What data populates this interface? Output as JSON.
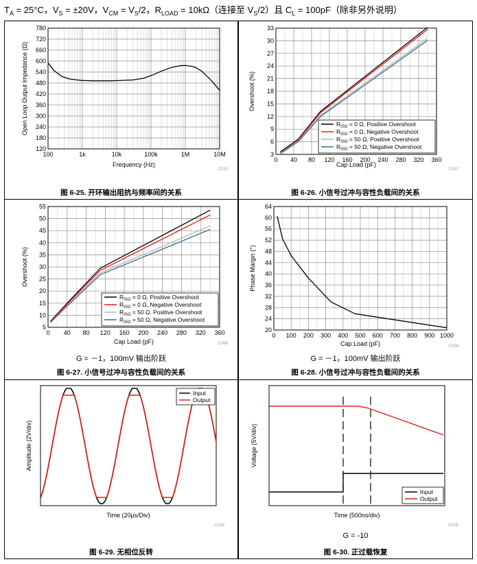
{
  "header": {
    "ta": "T",
    "ta_sub": "A",
    "ta_val": " = 25°C，V",
    "vs_sub": "S",
    "vs_val": " = ±20V，V",
    "vcm_sub": "CM",
    "vcm_val": " = V",
    "vcm_sub2": "S",
    "vcm_val2": "/2，R",
    "rload_sub": "LOAD",
    "rload_val": " = 10kΩ（连接至 V",
    "vs2_sub": "S",
    "vs2_val": "/2）且 C",
    "cl_sub": "L",
    "cl_val": " = 100pF（除非另外说明）"
  },
  "panels": [
    {
      "id": "fig-6-25",
      "caption": "图 6-25. 开环输出阻抗与频率间的关系",
      "code": "C013",
      "note": "",
      "chart_data": {
        "type": "line",
        "xscale": "log",
        "xlim": [
          100,
          10000000
        ],
        "xticks": [
          "100",
          "1k",
          "10k",
          "100k",
          "1M",
          "10M"
        ],
        "xlabel": "Frequency (Hz)",
        "ylabel": "Open Loop Output Impedance (Ω)",
        "ylim": [
          120,
          780
        ],
        "yticks": [
          "120",
          "180",
          "240",
          "300",
          "360",
          "420",
          "480",
          "540",
          "600",
          "660",
          "720",
          "780"
        ],
        "series": [
          {
            "color": "#000000",
            "x": [
              100,
              150,
              250,
              400,
              700,
              1000,
              2000,
              5000,
              10000,
              30000,
              60000,
              100000,
              200000,
              400000,
              700000,
              1000000,
              1500000,
              2000000,
              3000000,
              5000000,
              7000000,
              10000000
            ],
            "y": [
              590,
              548,
              516,
              503,
              497,
              494,
              492,
              492,
              493,
              497,
              506,
              520,
              545,
              565,
              575,
              576,
              572,
              565,
              545,
              505,
              475,
              440
            ]
          }
        ]
      }
    },
    {
      "id": "fig-6-26",
      "caption": "图 6-26. 小信号过冲与容性负载间的关系",
      "code": "C007",
      "note": "",
      "chart_data": {
        "type": "line",
        "xlim": [
          0,
          360
        ],
        "xticks": [
          "0",
          "40",
          "80",
          "120",
          "160",
          "200",
          "240",
          "280",
          "320",
          "360"
        ],
        "xlabel": "Cap Load (pF)",
        "ylabel": "Overshoot (%)",
        "ylim": [
          3,
          33
        ],
        "yticks": [
          "3",
          "6",
          "9",
          "12",
          "15",
          "18",
          "21",
          "24",
          "27",
          "30",
          "33"
        ],
        "legend_position": "bottom-right",
        "series": [
          {
            "name": "R_ISO = 0 Ω, Positive Overshoot",
            "name_main": "R",
            "name_sub": "ISO",
            "name_rest": " = 0 Ω, Positive Overshoot",
            "color": "#000000",
            "x": [
              10,
              50,
              100,
              340
            ],
            "y": [
              3.6,
              6.6,
              13.2,
              33.2
            ]
          },
          {
            "name": "R_ISO = 0 Ω, Negative Overshoot",
            "name_main": "R",
            "name_sub": "ISO",
            "name_rest": " = 0 Ω, Negative Overshoot",
            "color": "#e41b1b",
            "x": [
              10,
              50,
              100,
              340
            ],
            "y": [
              3.4,
              6.4,
              12.9,
              32.7
            ]
          },
          {
            "name": "R_ISO = 50 Ω, Positive Overshoot",
            "name_main": "R",
            "name_sub": "ISO",
            "name_rest": " = 50 Ω, Positive Overshoot",
            "color": "#b4b4b4",
            "x": [
              10,
              50,
              100,
              340
            ],
            "y": [
              3.3,
              6.2,
              12.3,
              30.6
            ]
          },
          {
            "name": "R_ISO = 50 Ω, Negative Overshoot",
            "name_main": "R",
            "name_sub": "ISO",
            "name_rest": " = 50 Ω, Negative Overshoot",
            "color": "#3b6a8c",
            "x": [
              10,
              50,
              100,
              340
            ],
            "y": [
              3.2,
              6.0,
              12.0,
              30.1
            ]
          }
        ]
      }
    },
    {
      "id": "fig-6-27",
      "caption": "图 6-27. 小信号过冲与容性负载间的关系",
      "code": "C008",
      "note": "G = －1，100mV 输出阶跃",
      "chart_data": {
        "type": "line",
        "xlim": [
          0,
          360
        ],
        "xticks": [
          "0",
          "40",
          "80",
          "120",
          "160",
          "200",
          "240",
          "280",
          "320",
          "360"
        ],
        "xlabel": "Cap Load (pF)",
        "ylabel": "Overshoot (%)",
        "ylim": [
          5,
          55
        ],
        "yticks": [
          "5",
          "10",
          "15",
          "20",
          "25",
          "30",
          "35",
          "40",
          "45",
          "50",
          "55"
        ],
        "legend_position": "bottom-right",
        "series": [
          {
            "name": "R_ISO = 0 Ω, Positive Overshoot",
            "name_main": "R",
            "name_sub": "ISO",
            "name_rest": " = 0 Ω, Positive Overshoot",
            "color": "#000000",
            "x": [
              5,
              40,
              110,
              340
            ],
            "y": [
              7.5,
              15.0,
              29.5,
              53.5
            ]
          },
          {
            "name": "R_ISO = 0 Ω, Negative Overshoot",
            "name_main": "R",
            "name_sub": "ISO",
            "name_rest": " = 0 Ω, Negative Overshoot",
            "color": "#e41b1b",
            "x": [
              5,
              40,
              110,
              340
            ],
            "y": [
              7.3,
              14.6,
              28.6,
              51.5
            ]
          },
          {
            "name": "R_ISO = 50 Ω, Positive Overshoot",
            "name_main": "R",
            "name_sub": "ISO",
            "name_rest": " = 50 Ω, Positive Overshoot",
            "color": "#b4b4b4",
            "x": [
              5,
              40,
              110,
              340
            ],
            "y": [
              7.1,
              14.0,
              27.5,
              47.0
            ]
          },
          {
            "name": "R_ISO = 50 Ω, Negative Overshoot",
            "name_main": "R",
            "name_sub": "ISO",
            "name_rest": " = 50 Ω, Negative Overshoot",
            "color": "#3b6a8c",
            "x": [
              5,
              40,
              110,
              340
            ],
            "y": [
              7.0,
              13.8,
              26.8,
              45.5
            ]
          }
        ]
      }
    },
    {
      "id": "fig-6-28",
      "caption": "图 6-28. 小信号过冲与容性负载间的关系",
      "code": "C009",
      "note": "G = －1，100mV 输出阶跃",
      "chart_data": {
        "type": "line",
        "xlim": [
          0,
          1000
        ],
        "xticks": [
          "0",
          "100",
          "200",
          "300",
          "400",
          "500",
          "600",
          "700",
          "800",
          "900",
          "1000"
        ],
        "xlabel": "Cap Load (pF)",
        "ylabel": "Phase Margin (°)",
        "ylim": [
          20,
          64
        ],
        "yticks": [
          "20",
          "24",
          "28",
          "32",
          "36",
          "40",
          "44",
          "48",
          "52",
          "56",
          "60",
          "64"
        ],
        "series": [
          {
            "color": "#000000",
            "x": [
              20,
              50,
              100,
              200,
              330,
              470,
              1000
            ],
            "y": [
              60.5,
              52.5,
              46.5,
              38.5,
              30.0,
              25.8,
              20.8
            ]
          }
        ]
      }
    },
    {
      "id": "fig-6-29",
      "caption": "图 6-29. 无相位反转",
      "code": "C016",
      "note": "",
      "chart_data": {
        "type": "line",
        "xlabel": "Time (20µs/Div)",
        "ylabel": "Amplitude (2V/div)",
        "legend_position": "top-right",
        "grid": false,
        "series": [
          {
            "name": "Input",
            "color": "#000000"
          },
          {
            "name": "Output",
            "color": "#e41b1b"
          }
        ]
      }
    },
    {
      "id": "fig-6-30",
      "caption": "图 6-30. 正过载恢复",
      "code": "C018",
      "note": "G = -10",
      "chart_data": {
        "type": "line",
        "xlabel": "Time (500ns/div)",
        "ylabel": "Voltage (5V/div)",
        "legend_position": "bottom-right",
        "grid": false,
        "series": [
          {
            "name": "Input",
            "color": "#000000"
          },
          {
            "name": "Output",
            "color": "#e41b1b"
          }
        ]
      }
    }
  ]
}
